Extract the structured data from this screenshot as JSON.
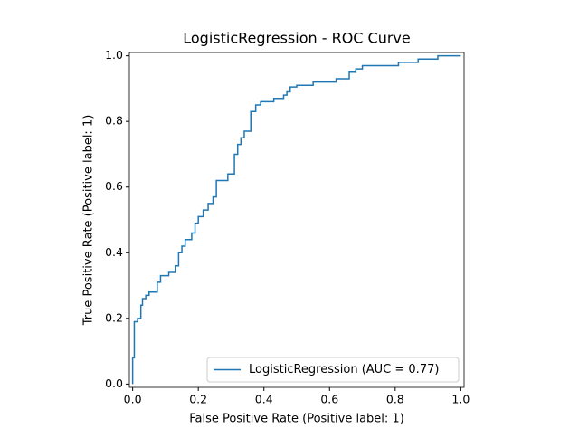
{
  "chart_data": {
    "type": "line",
    "title": "LogisticRegression - ROC Curve",
    "x_label": "False Positive Rate (Positive label: 1)",
    "y_label": "True Positive Rate (Positive label: 1)",
    "x": [
      0,
      0,
      0.005,
      0.005,
      0.015,
      0.015,
      0.025,
      0.025,
      0.03,
      0.03,
      0.04,
      0.04,
      0.05,
      0.05,
      0.075,
      0.075,
      0.085,
      0.085,
      0.11,
      0.11,
      0.13,
      0.13,
      0.14,
      0.14,
      0.15,
      0.15,
      0.16,
      0.16,
      0.18,
      0.18,
      0.19,
      0.19,
      0.2,
      0.2,
      0.215,
      0.215,
      0.23,
      0.23,
      0.245,
      0.245,
      0.255,
      0.255,
      0.29,
      0.29,
      0.31,
      0.31,
      0.32,
      0.32,
      0.33,
      0.33,
      0.34,
      0.34,
      0.36,
      0.36,
      0.375,
      0.375,
      0.39,
      0.39,
      0.43,
      0.43,
      0.46,
      0.46,
      0.47,
      0.47,
      0.48,
      0.48,
      0.5,
      0.5,
      0.55,
      0.55,
      0.62,
      0.62,
      0.66,
      0.66,
      0.68,
      0.68,
      0.7,
      0.7,
      0.81,
      0.81,
      0.87,
      0.87,
      0.93,
      0.93,
      1
    ],
    "series": [
      {
        "name": "LogisticRegression (AUC = 0.77)",
        "color": "#1f77b4",
        "values": [
          0,
          0.08,
          0.08,
          0.19,
          0.19,
          0.2,
          0.2,
          0.24,
          0.24,
          0.26,
          0.26,
          0.27,
          0.27,
          0.28,
          0.28,
          0.31,
          0.31,
          0.33,
          0.33,
          0.34,
          0.34,
          0.36,
          0.36,
          0.4,
          0.4,
          0.42,
          0.42,
          0.44,
          0.44,
          0.46,
          0.46,
          0.49,
          0.49,
          0.51,
          0.51,
          0.53,
          0.53,
          0.55,
          0.55,
          0.57,
          0.57,
          0.62,
          0.62,
          0.64,
          0.64,
          0.7,
          0.7,
          0.73,
          0.73,
          0.75,
          0.75,
          0.77,
          0.77,
          0.83,
          0.83,
          0.85,
          0.85,
          0.86,
          0.86,
          0.87,
          0.87,
          0.88,
          0.88,
          0.89,
          0.89,
          0.905,
          0.905,
          0.91,
          0.91,
          0.92,
          0.92,
          0.93,
          0.93,
          0.95,
          0.95,
          0.96,
          0.96,
          0.97,
          0.97,
          0.98,
          0.98,
          0.99,
          0.99,
          1,
          1
        ]
      }
    ],
    "xlim": [
      -0.01,
      1.01
    ],
    "ylim": [
      -0.01,
      1.01
    ],
    "xticks": [
      {
        "value": 0,
        "label": "0.0"
      },
      0.2,
      0.4,
      0.6,
      0.8,
      {
        "value": 1,
        "label": "1.0"
      }
    ],
    "yticks": [
      {
        "value": 0,
        "label": "0.0"
      },
      0.2,
      0.4,
      0.6,
      0.8,
      {
        "value": 1,
        "label": "1.0"
      }
    ],
    "legend": "lower right"
  }
}
